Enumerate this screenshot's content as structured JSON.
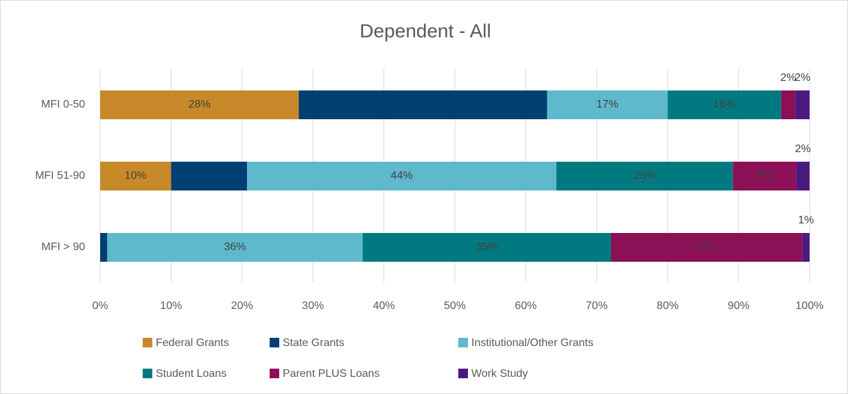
{
  "chart_data": {
    "type": "stacked-bar-horizontal",
    "title": "Dependent - All",
    "categories": [
      "MFI 0-50",
      "MFI 51-90",
      "MFI > 90"
    ],
    "series": [
      {
        "name": "Federal Grants",
        "color": "#c8892a",
        "values": [
          28,
          10,
          0
        ],
        "value_labels": [
          "28%",
          "10%",
          null
        ]
      },
      {
        "name": "State Grants",
        "color": "#003f72",
        "values": [
          35,
          10.7,
          1
        ],
        "value_labels": [
          null,
          null,
          null
        ]
      },
      {
        "name": "Institutional/Other Grants",
        "color": "#5eb9cc",
        "values": [
          17,
          43.6,
          36
        ],
        "value_labels": [
          "17%",
          "44%",
          "36%"
        ]
      },
      {
        "name": "Student Loans",
        "color": "#007a80",
        "values": [
          16,
          24.9,
          35
        ],
        "value_labels": [
          "16%",
          "25%",
          "35%"
        ]
      },
      {
        "name": "Parent PLUS Loans",
        "color": "#8b1056",
        "values": [
          2,
          8.9,
          27
        ],
        "value_labels": [
          "2%",
          "9%",
          "27%"
        ]
      },
      {
        "name": "Work Study",
        "color": "#4a1a80",
        "values": [
          2,
          1.9,
          1
        ],
        "value_labels": [
          "2%",
          "2%",
          "1%"
        ]
      }
    ],
    "xlim": [
      0,
      100
    ],
    "xticks": [
      {
        "value": 0,
        "label": "0%"
      },
      {
        "value": 10,
        "label": "10%"
      },
      {
        "value": 20,
        "label": "20%"
      },
      {
        "value": 30,
        "label": "30%"
      },
      {
        "value": 40,
        "label": "40%"
      },
      {
        "value": 50,
        "label": "50%"
      },
      {
        "value": 60,
        "label": "60%"
      },
      {
        "value": 70,
        "label": "70%"
      },
      {
        "value": 80,
        "label": "80%"
      },
      {
        "value": 90,
        "label": "90%"
      },
      {
        "value": 100,
        "label": "100%"
      }
    ],
    "grid": true,
    "legend": "bottom"
  }
}
